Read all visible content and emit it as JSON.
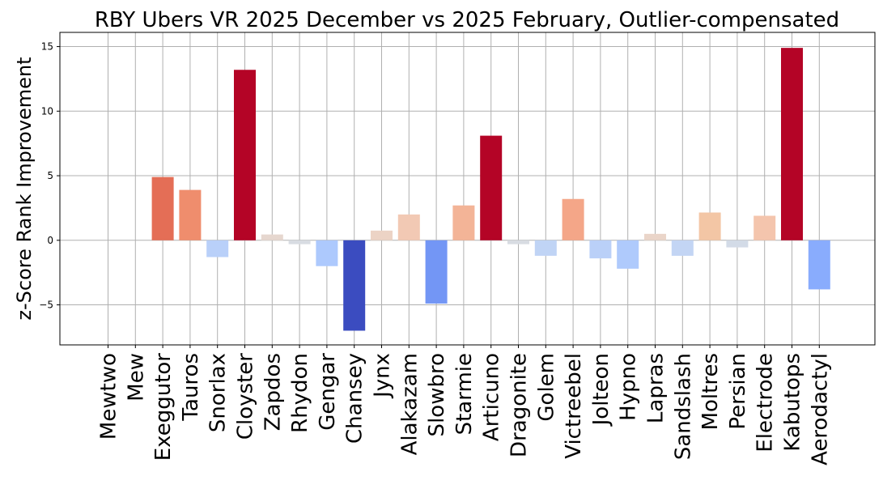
{
  "chart_data": {
    "type": "bar",
    "title": "RBY Ubers VR 2025 December vs 2025 February, Outlier-compensated",
    "xlabel": "",
    "ylabel": "z-Score Rank Improvement",
    "ylim": [
      -8.1,
      16.1
    ],
    "yticks": [
      -5,
      0,
      5,
      10,
      15
    ],
    "grid": true,
    "categories": [
      "Mewtwo",
      "Mew",
      "Exeggutor",
      "Tauros",
      "Snorlax",
      "Cloyster",
      "Zapdos",
      "Rhydon",
      "Gengar",
      "Chansey",
      "Jynx",
      "Alakazam",
      "Slowbro",
      "Starmie",
      "Articuno",
      "Dragonite",
      "Golem",
      "Victreebel",
      "Jolteon",
      "Hypno",
      "Lapras",
      "Sandslash",
      "Moltres",
      "Persian",
      "Electrode",
      "Kabutops",
      "Aerodactyl"
    ],
    "values": [
      0,
      0,
      4.9,
      3.9,
      -1.3,
      13.2,
      0.45,
      -0.3,
      -2.0,
      -7.0,
      0.75,
      2.0,
      -4.9,
      2.7,
      8.1,
      -0.3,
      -1.2,
      3.2,
      -1.4,
      -2.2,
      0.5,
      -1.2,
      2.15,
      -0.55,
      1.9,
      14.9,
      -3.8
    ],
    "colors": [
      "#dddcdc",
      "#dddcdc",
      "#e46e56",
      "#ef8d6d",
      "#b9d0f9",
      "#b40426",
      "#e6d7cf",
      "#d8dce2",
      "#adc9fd",
      "#3b4cc0",
      "#ecd3c5",
      "#f2c9b4",
      "#7396f5",
      "#f3b497",
      "#b40426",
      "#d8dce2",
      "#c0d4f5",
      "#f4a688",
      "#bad0f8",
      "#afcafc",
      "#ead5c9",
      "#c3d5f4",
      "#f3c6a5",
      "#d3dbe7",
      "#f4c5ad",
      "#b40426",
      "#89acfd"
    ]
  }
}
